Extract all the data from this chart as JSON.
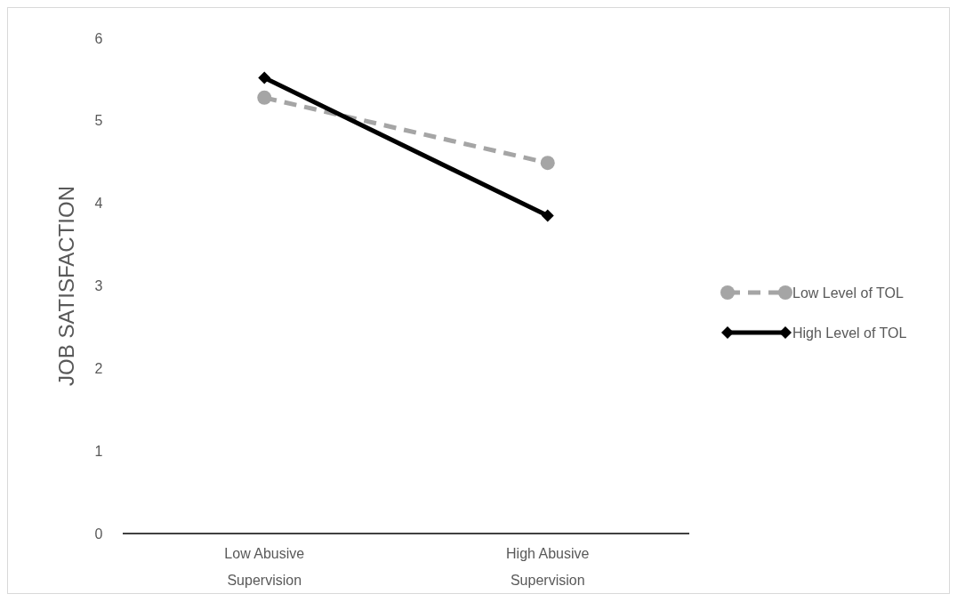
{
  "chart_data": {
    "type": "line",
    "ylabel": "JOB SATISFACTION",
    "categories": [
      "Low Abusive Supervision",
      "High Abusive Supervision"
    ],
    "ylim": [
      0,
      6
    ],
    "yticks": [
      0,
      1,
      2,
      3,
      4,
      5,
      6
    ],
    "grid": false,
    "legend": "right",
    "series": [
      {
        "name": "Low Level of TOL",
        "color": "#a5a5a5",
        "values": [
          5.28,
          4.49
        ],
        "marker": "circle",
        "line_style": "dashed"
      },
      {
        "name": "High Level of TOL",
        "color": "#000000",
        "values": [
          5.52,
          3.85
        ],
        "marker": "diamond",
        "line_style": "solid"
      }
    ]
  }
}
